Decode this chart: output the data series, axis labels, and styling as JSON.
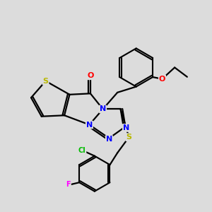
{
  "bg_color": "#dcdcdc",
  "bond_color": "#000000",
  "atom_colors": {
    "S": "#b8b800",
    "N": "#0000ff",
    "O": "#ff0000",
    "Cl": "#00bb00",
    "F": "#ff00ff",
    "C": "#000000"
  },
  "figsize": [
    3.0,
    3.0
  ],
  "dpi": 100,
  "lw": 1.6
}
